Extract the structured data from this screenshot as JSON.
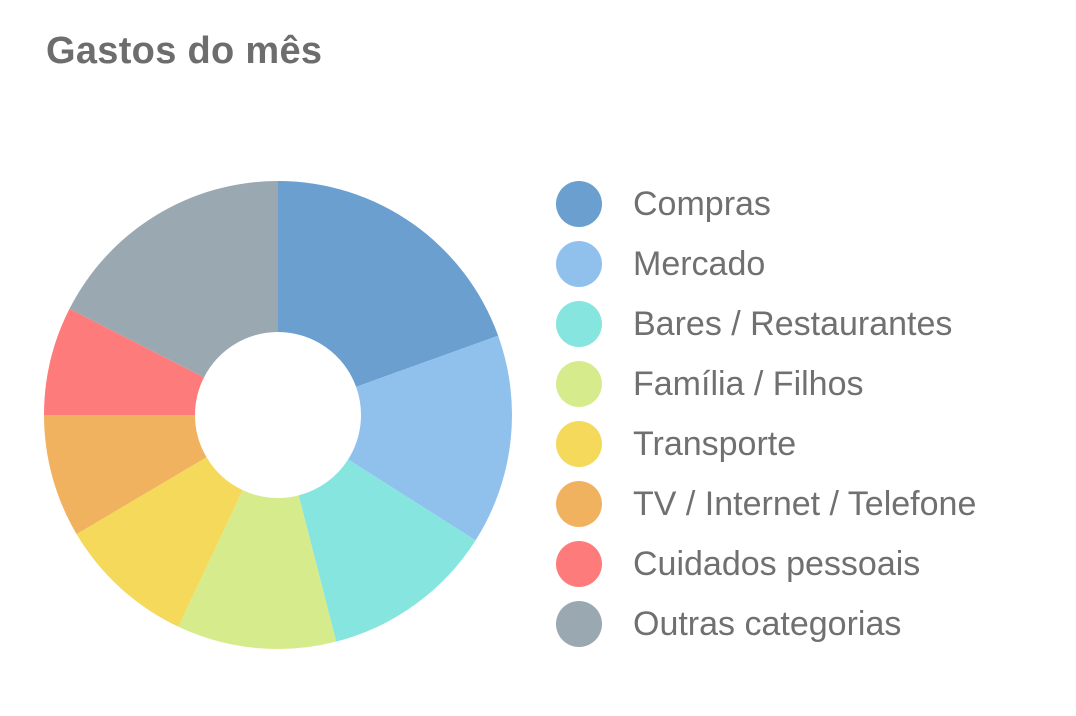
{
  "header": {
    "title": "Gastos do mês"
  },
  "chart_data": {
    "type": "pie",
    "variant": "donut",
    "title": "Gastos do mês",
    "legend_position": "right",
    "categories": [
      "Compras",
      "Mercado",
      "Bares / Restaurantes",
      "Família / Filhos",
      "Transporte",
      "TV / Internet / Telefone",
      "Cuidados pessoais",
      "Outras categorias"
    ],
    "values": [
      19.5,
      14.5,
      12,
      11,
      9.5,
      8.5,
      7.5,
      17.5
    ],
    "colors": [
      "#6a9fcf",
      "#90c1ed",
      "#86e5df",
      "#d6ec8c",
      "#f5d95a",
      "#f1b260",
      "#fd7b7a",
      "#9aa8b2"
    ]
  }
}
